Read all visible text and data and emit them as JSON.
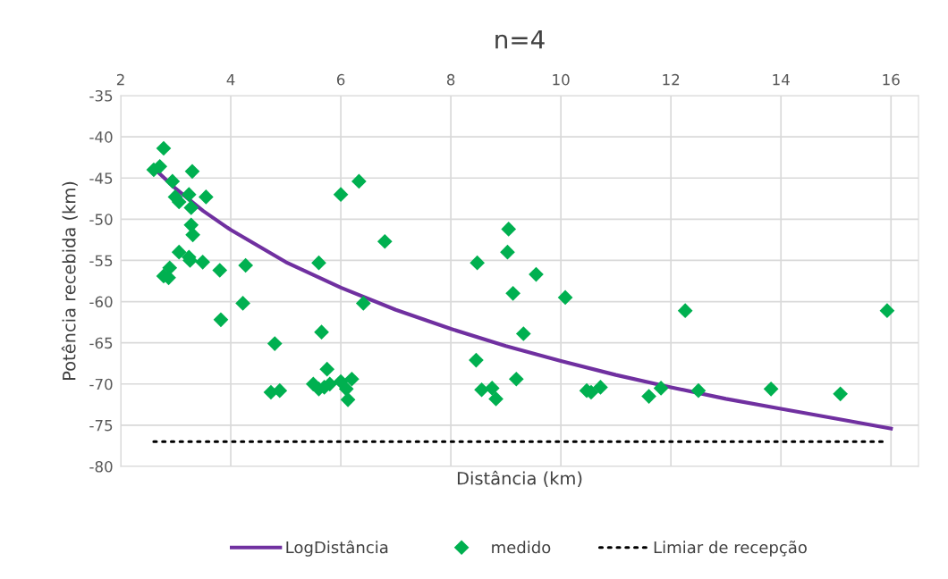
{
  "chart_data": {
    "type": "scatter",
    "title": "n=4",
    "xlabel": "Distância (km)",
    "ylabel": "Potência recebida (km)",
    "xlim": [
      2,
      16.5
    ],
    "xticks": [
      2,
      4,
      6,
      8,
      10,
      12,
      14,
      16
    ],
    "ylim": [
      -80,
      -35
    ],
    "yticks": [
      -35,
      -40,
      -45,
      -50,
      -55,
      -60,
      -65,
      -70,
      -75,
      -80
    ],
    "grid": true,
    "legend": "bottom",
    "series": [
      {
        "name": "LogDistância",
        "type": "line",
        "color": "#7030a0",
        "marker": "none",
        "line_style": "solid",
        "x": [
          2.6,
          3,
          3.5,
          4,
          5,
          6,
          7,
          8,
          9,
          10,
          11,
          12,
          13,
          14,
          15,
          16
        ],
        "values": [
          -43.8,
          -46.3,
          -49.0,
          -51.3,
          -55.2,
          -58.3,
          -61.0,
          -63.3,
          -65.4,
          -67.2,
          -68.9,
          -70.4,
          -71.8,
          -73.0,
          -74.2,
          -75.4
        ]
      },
      {
        "name": "medido",
        "color": "#00b050",
        "marker": "diamond",
        "x": [
          2.6,
          2.71,
          2.78,
          2.94,
          2.99,
          3.06,
          3.3,
          3.24,
          3.55,
          3.28,
          3.28,
          3.31,
          3.06,
          3.24,
          3.26,
          3.49,
          3.8,
          4.27,
          2.89,
          2.78,
          2.87,
          5.6,
          4.22,
          3.82,
          6.41,
          6.0,
          6.33,
          6.8,
          5.65,
          4.8,
          5.75,
          4.73,
          4.89,
          5.5,
          5.6,
          5.7,
          5.8,
          6.0,
          6.1,
          6.2,
          6.13,
          9.05,
          9.03,
          8.48,
          9.55,
          9.13,
          10.08,
          9.32,
          8.46,
          9.19,
          8.56,
          8.75,
          8.82,
          10.47,
          10.55,
          10.72,
          11.6,
          11.82,
          12.26,
          12.5,
          13.82,
          15.08,
          15.93
        ],
        "values": [
          -44.0,
          -43.6,
          -41.4,
          -45.4,
          -47.3,
          -47.9,
          -44.2,
          -47.0,
          -47.3,
          -48.6,
          -50.7,
          -51.9,
          -54.0,
          -54.6,
          -55.0,
          -55.2,
          -56.2,
          -55.6,
          -55.9,
          -56.9,
          -57.1,
          -55.3,
          -60.2,
          -62.2,
          -60.2,
          -47.0,
          -45.4,
          -52.7,
          -63.7,
          -65.1,
          -68.2,
          -71.0,
          -70.8,
          -70.0,
          -70.6,
          -70.4,
          -70.0,
          -69.7,
          -70.6,
          -69.4,
          -71.9,
          -51.2,
          -54.0,
          -55.3,
          -56.7,
          -59.0,
          -59.5,
          -63.9,
          -67.1,
          -69.4,
          -70.7,
          -70.5,
          -71.8,
          -70.8,
          -71.0,
          -70.4,
          -71.5,
          -70.5,
          -61.1,
          -70.8,
          -70.6,
          -71.2,
          -61.1
        ]
      },
      {
        "name": "Limiar de recepção",
        "type": "line",
        "color": "#000000",
        "marker": "none",
        "line_style": "dotted",
        "x": [
          2.6,
          15.9
        ],
        "values": [
          -77,
          -77
        ]
      }
    ]
  }
}
